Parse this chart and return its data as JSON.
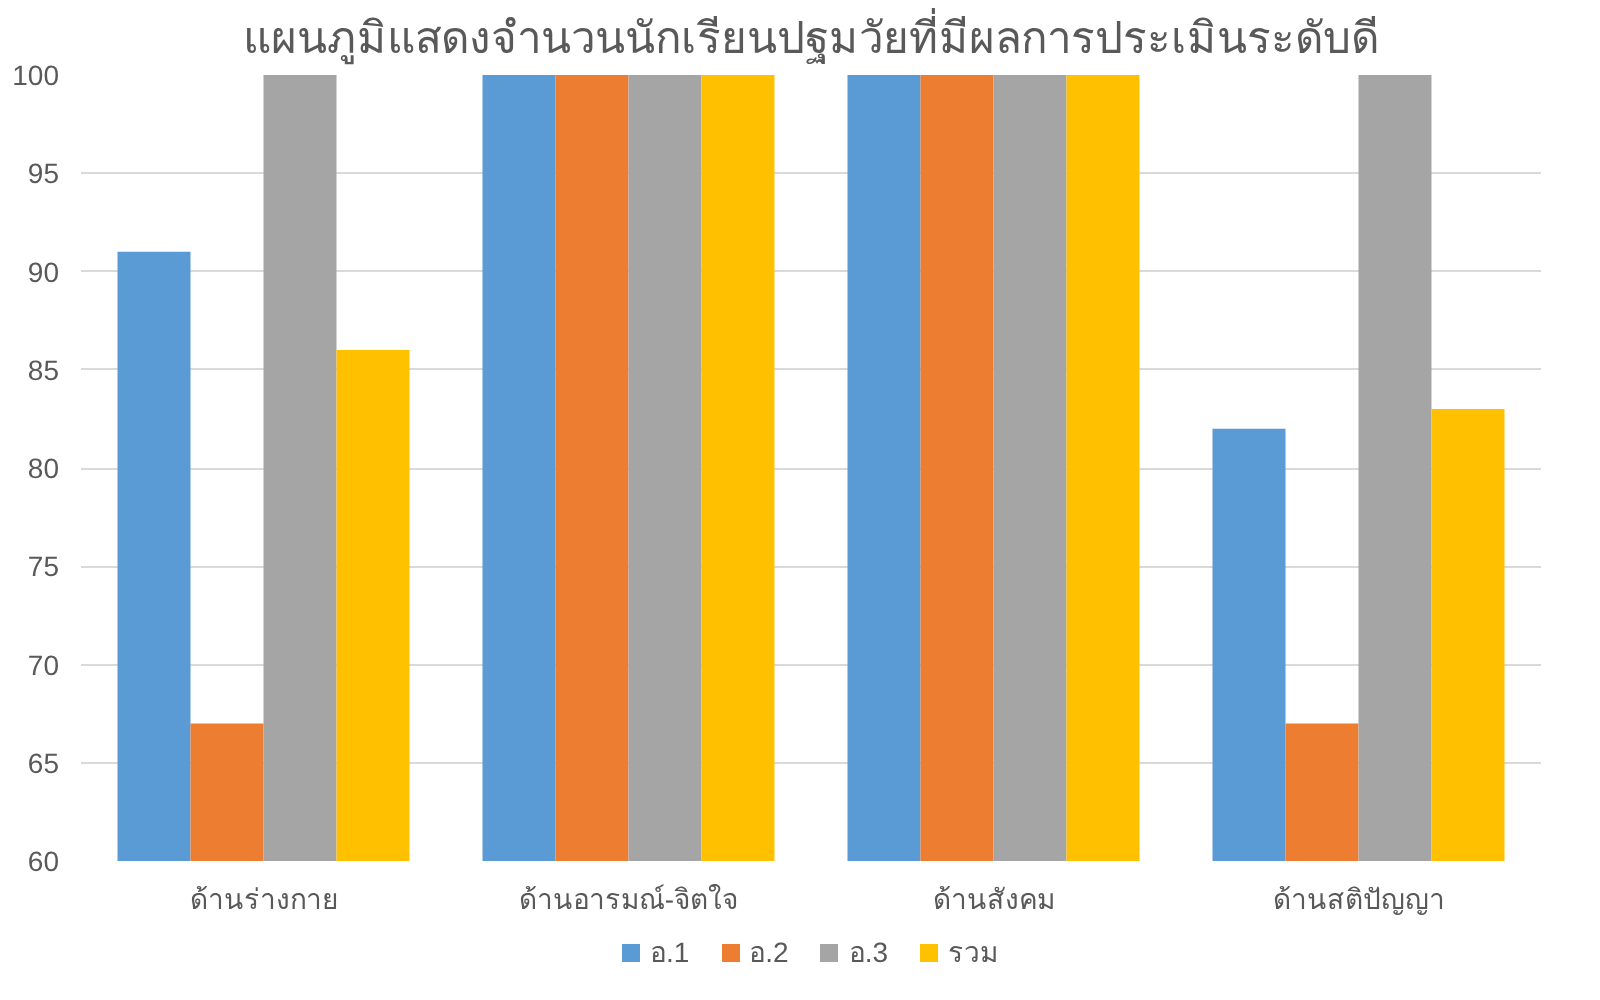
{
  "chart_data": {
    "type": "bar",
    "title": "แผนภูมิแสดงจำนวนนักเรียนปฐมวัยที่มีผลการประเมินระดับดี",
    "categories": [
      "ด้านร่างกาย",
      "ด้านอารมณ์-จิตใจ",
      "ด้านสังคม",
      "ด้านสติปัญญา"
    ],
    "series": [
      {
        "name": "อ.1",
        "color": "#5b9bd5",
        "values": [
          91,
          100,
          100,
          82
        ]
      },
      {
        "name": "อ.2",
        "color": "#ed7d31",
        "values": [
          67,
          100,
          100,
          67
        ]
      },
      {
        "name": "อ.3",
        "color": "#a5a5a5",
        "values": [
          100,
          100,
          100,
          100
        ]
      },
      {
        "name": "รวม",
        "color": "#ffc000",
        "values": [
          86,
          100,
          100,
          83
        ]
      }
    ],
    "ylim": [
      60,
      100
    ],
    "yticks": [
      60,
      65,
      70,
      75,
      80,
      85,
      90,
      95,
      100
    ],
    "grid": "y",
    "legend": "bottom"
  }
}
